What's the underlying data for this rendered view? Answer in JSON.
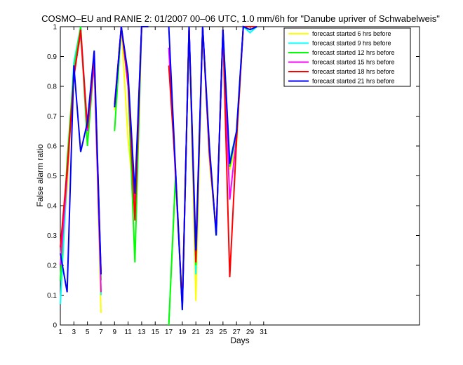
{
  "chart_data": {
    "type": "line",
    "title": "COSMO–EU and RANIE 2: 01/2007 00–06 UTC, 1.0 mm/6h for \"Danube upriver of Schwabelweis\"",
    "xlabel": "Days",
    "ylabel": "False alarm ratio",
    "xlim": [
      1,
      54
    ],
    "ylim": [
      0,
      1
    ],
    "xticks": [
      "1",
      "3",
      "5",
      "7",
      "9",
      "11",
      "13",
      "15",
      "17",
      "19",
      "21",
      "23",
      "25",
      "27",
      "29",
      "31"
    ],
    "yticks": [
      "0",
      "0.1",
      "0.2",
      "0.3",
      "0.4",
      "0.5",
      "0.6",
      "0.7",
      "0.8",
      "0.9",
      "1"
    ],
    "legend_position": "top-right",
    "grid": false,
    "series": [
      {
        "name": "forecast started 6 hrs before",
        "color": "#ffff00",
        "points": [
          [
            1,
            0.22
          ],
          [
            2,
            0.45
          ],
          [
            3,
            0.85
          ],
          [
            4,
            0.97
          ],
          [
            5,
            0.64
          ],
          [
            6,
            0.88
          ],
          [
            7,
            0.04
          ],
          null,
          [
            9,
            0.72
          ],
          [
            10,
            1.0
          ],
          [
            11,
            0.62
          ],
          [
            12,
            0.4
          ],
          [
            13,
            1.0
          ],
          [
            14,
            1.0
          ],
          null,
          [
            17,
            0.0
          ],
          [
            18,
            0.48
          ],
          [
            19,
            0.08
          ],
          [
            20,
            1.0
          ],
          [
            21,
            0.08
          ],
          [
            22,
            1.0
          ],
          [
            23,
            0.55
          ],
          [
            24,
            0.3
          ],
          [
            25,
            0.98
          ],
          [
            26,
            0.52
          ],
          [
            27,
            0.6
          ],
          [
            28,
            1.0
          ],
          [
            29,
            0.99
          ],
          [
            30,
            1.0
          ]
        ]
      },
      {
        "name": "forecast started 9 hrs before",
        "color": "#00ffff",
        "points": [
          [
            1,
            0.07
          ],
          [
            2,
            0.5
          ],
          [
            3,
            0.88
          ],
          [
            4,
            1.0
          ],
          [
            5,
            0.66
          ],
          [
            6,
            0.9
          ],
          [
            7,
            0.1
          ],
          null,
          [
            9,
            0.73
          ],
          [
            10,
            1.0
          ],
          [
            11,
            0.82
          ],
          [
            12,
            0.38
          ],
          [
            13,
            1.0
          ],
          [
            14,
            1.0
          ],
          null,
          [
            17,
            0.0
          ],
          [
            18,
            0.5
          ],
          [
            19,
            0.05
          ],
          [
            20,
            1.0
          ],
          [
            21,
            0.17
          ],
          [
            22,
            1.0
          ],
          [
            23,
            0.58
          ],
          [
            24,
            0.3
          ],
          [
            25,
            0.99
          ],
          [
            26,
            0.55
          ],
          [
            27,
            0.65
          ],
          [
            28,
            1.0
          ],
          [
            29,
            0.98
          ],
          [
            30,
            1.0
          ]
        ]
      },
      {
        "name": "forecast started 12 hrs before",
        "color": "#00ff00",
        "points": [
          [
            1,
            0.15
          ],
          [
            2,
            0.55
          ],
          [
            3,
            0.86
          ],
          [
            4,
            1.0
          ],
          [
            5,
            0.6
          ],
          [
            6,
            0.88
          ],
          [
            7,
            0.15
          ],
          null,
          [
            9,
            0.65
          ],
          [
            10,
            1.0
          ],
          [
            11,
            0.8
          ],
          [
            12,
            0.21
          ],
          [
            13,
            1.0
          ],
          [
            14,
            1.0
          ],
          null,
          [
            17,
            0.0
          ],
          [
            18,
            0.5
          ],
          [
            19,
            0.06
          ],
          [
            20,
            1.0
          ],
          [
            21,
            0.2
          ],
          [
            22,
            1.0
          ],
          [
            23,
            0.57
          ],
          [
            24,
            0.31
          ],
          [
            25,
            0.99
          ],
          [
            26,
            0.53
          ],
          [
            27,
            0.64
          ],
          [
            28,
            1.0
          ],
          [
            29,
            0.99
          ],
          [
            30,
            1.0
          ]
        ]
      },
      {
        "name": "forecast started 15 hrs before",
        "color": "#ff00ff",
        "points": [
          [
            1,
            0.2
          ],
          [
            2,
            0.5
          ],
          [
            3,
            0.84
          ],
          [
            4,
            0.98
          ],
          [
            5,
            0.65
          ],
          [
            6,
            0.88
          ],
          [
            7,
            0.11
          ],
          null,
          [
            9,
            0.74
          ],
          [
            10,
            1.0
          ],
          [
            11,
            0.8
          ],
          [
            12,
            0.42
          ],
          [
            13,
            1.0
          ],
          [
            14,
            1.0
          ],
          null,
          [
            17,
            0.93
          ],
          [
            18,
            0.5
          ],
          [
            19,
            0.06
          ],
          [
            20,
            1.0
          ],
          [
            21,
            0.22
          ],
          [
            22,
            1.0
          ],
          [
            23,
            0.57
          ],
          [
            24,
            0.31
          ],
          [
            25,
            0.99
          ],
          [
            26,
            0.42
          ],
          [
            27,
            0.63
          ],
          [
            28,
            1.0
          ],
          [
            29,
            1.0
          ],
          [
            30,
            1.0
          ]
        ]
      },
      {
        "name": "forecast started 18 hrs before",
        "color": "#ff0000",
        "points": [
          [
            1,
            0.26
          ],
          [
            2,
            0.52
          ],
          [
            3,
            0.83
          ],
          [
            4,
            0.99
          ],
          [
            5,
            0.66
          ],
          [
            6,
            0.9
          ],
          [
            7,
            0.17
          ],
          null,
          [
            9,
            0.73
          ],
          [
            10,
            1.0
          ],
          [
            11,
            0.82
          ],
          [
            12,
            0.35
          ],
          [
            13,
            1.0
          ],
          [
            14,
            1.0
          ],
          null,
          [
            17,
            0.87
          ],
          [
            18,
            0.52
          ],
          [
            19,
            0.06
          ],
          [
            20,
            1.0
          ],
          [
            21,
            0.21
          ],
          [
            22,
            1.0
          ],
          [
            23,
            0.58
          ],
          [
            24,
            0.31
          ],
          [
            25,
            0.99
          ],
          [
            26,
            0.16
          ],
          [
            27,
            0.62
          ],
          [
            28,
            1.0
          ],
          [
            29,
            1.0
          ],
          [
            30,
            1.0
          ]
        ]
      },
      {
        "name": "forecast started 21 hrs before",
        "color": "#0000ff",
        "points": [
          [
            1,
            0.24
          ],
          [
            2,
            0.11
          ],
          [
            3,
            0.87
          ],
          [
            4,
            0.58
          ],
          [
            5,
            0.68
          ],
          [
            6,
            0.92
          ],
          [
            7,
            0.17
          ],
          null,
          [
            9,
            0.73
          ],
          [
            10,
            1.0
          ],
          [
            11,
            0.84
          ],
          [
            12,
            0.44
          ],
          [
            13,
            1.0
          ],
          [
            14,
            1.0
          ],
          null,
          [
            17,
            1.0
          ],
          [
            18,
            0.52
          ],
          [
            19,
            0.05
          ],
          [
            20,
            1.0
          ],
          [
            21,
            0.25
          ],
          [
            22,
            1.0
          ],
          [
            23,
            0.6
          ],
          [
            24,
            0.3
          ],
          [
            25,
            0.99
          ],
          [
            26,
            0.54
          ],
          [
            27,
            0.65
          ],
          [
            28,
            1.0
          ],
          [
            29,
            0.99
          ],
          [
            30,
            1.0
          ]
        ]
      }
    ]
  }
}
